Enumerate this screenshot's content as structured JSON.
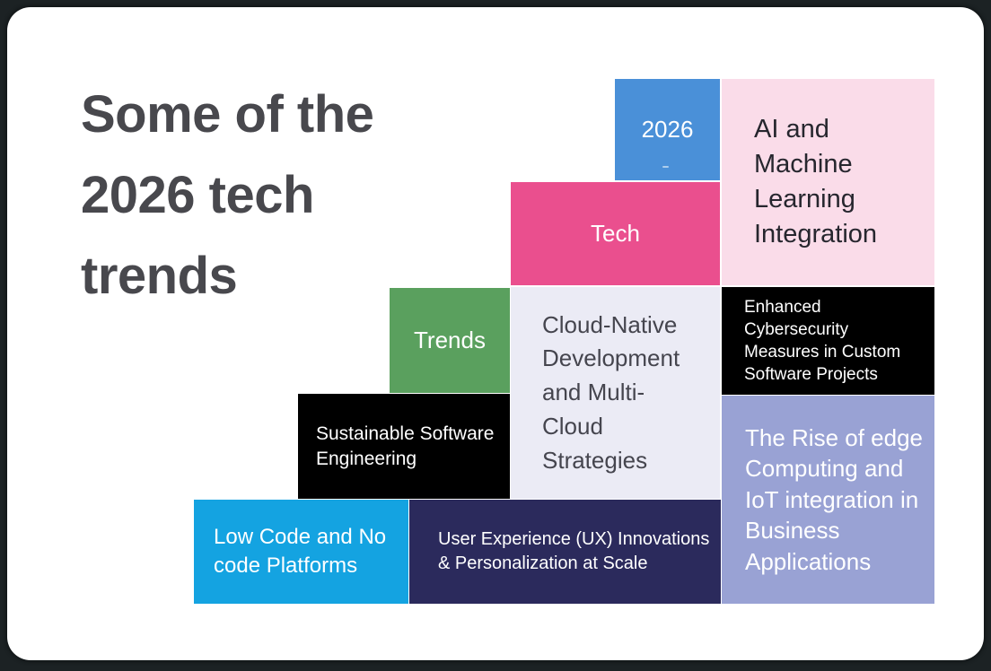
{
  "page": {
    "card_background": "#ffffff",
    "outer_background": "#1c2224"
  },
  "title": {
    "text": "Some of the\n2026 tech\ntrends",
    "color": "#48484d"
  },
  "blocks": {
    "year": {
      "label": "2026",
      "bg": "#4a90d8",
      "fg": "#ffffff"
    },
    "tech": {
      "label": "Tech",
      "bg": "#ea4f8e",
      "fg": "#ffffff"
    },
    "trends": {
      "label": "Trends",
      "bg": "#5aa05e",
      "fg": "#ffffff"
    },
    "ai": {
      "label": "AI and\nMachine\nLearning\nIntegration",
      "bg": "#fadce9",
      "fg": "#26262e"
    },
    "cloud": {
      "label": "Cloud-Native\nDevelopment\nand Multi-\nCloud\nStrategies",
      "bg": "#ebebf5",
      "fg": "#45454e"
    },
    "cyber": {
      "label": "Enhanced Cybersecurity\nMeasures in Custom\nSoftware Projects",
      "bg": "#000000",
      "fg": "#ffffff"
    },
    "sustainable": {
      "label": "Sustainable Software\nEngineering",
      "bg": "#000000",
      "fg": "#ffffff"
    },
    "edge": {
      "label": "The Rise of edge\nComputing and\nIoT integration in\nBusiness\nApplications",
      "bg": "#99a2d4",
      "fg": "#ffffff"
    },
    "lowcode": {
      "label": "Low Code and No\ncode Platforms",
      "bg": "#14a3e1",
      "fg": "#ffffff"
    },
    "ux": {
      "label": "User Experience (UX) Innovations\n& Personalization at Scale",
      "bg": "#2b2a5c",
      "fg": "#ffffff"
    }
  }
}
